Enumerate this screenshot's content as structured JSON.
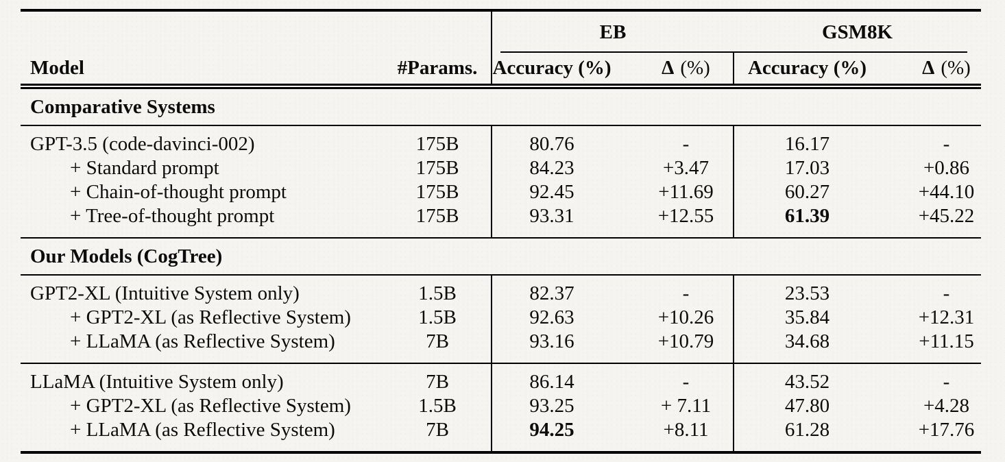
{
  "colors": {
    "text": "#0c0c0c",
    "background": "#f5f4f1"
  },
  "header": {
    "model": "Model",
    "params": "#Params.",
    "eb": "EB",
    "gsm8k": "GSM8K",
    "accuracy": "Accuracy (%)",
    "delta_symbol": "Δ",
    "delta_unit": "(%)"
  },
  "sections": [
    {
      "title": "Comparative Systems",
      "groups": [
        {
          "rows": [
            {
              "model": "GPT-3.5 (code-davinci-002)",
              "params": "175B",
              "eb_acc": "80.76",
              "eb_delta": "-",
              "gsm_acc": "16.17",
              "gsm_delta": "-"
            },
            {
              "model": "+ Standard prompt",
              "params": "175B",
              "eb_acc": "84.23",
              "eb_delta": "+3.47",
              "gsm_acc": "17.03",
              "gsm_delta": "+0.86"
            },
            {
              "model": "+ Chain-of-thought prompt",
              "params": "175B",
              "eb_acc": "92.45",
              "eb_delta": "+11.69",
              "gsm_acc": "60.27",
              "gsm_delta": "+44.10"
            },
            {
              "model": "+ Tree-of-thought prompt",
              "params": "175B",
              "eb_acc": "93.31",
              "eb_delta": "+12.55",
              "gsm_acc": "61.39",
              "gsm_delta": "+45.22"
            }
          ]
        }
      ]
    },
    {
      "title": "Our Models (CogTree)",
      "groups": [
        {
          "rows": [
            {
              "model": "GPT2-XL (Intuitive System only)",
              "params": "1.5B",
              "eb_acc": "82.37",
              "eb_delta": "-",
              "gsm_acc": "23.53",
              "gsm_delta": "-"
            },
            {
              "model": "+ GPT2-XL (as Reflective System)",
              "params": "1.5B",
              "eb_acc": "92.63",
              "eb_delta": "+10.26",
              "gsm_acc": "35.84",
              "gsm_delta": "+12.31"
            },
            {
              "model": "+ LLaMA (as Reflective System)",
              "params": "7B",
              "eb_acc": "93.16",
              "eb_delta": "+10.79",
              "gsm_acc": "34.68",
              "gsm_delta": "+11.15"
            }
          ]
        },
        {
          "rows": [
            {
              "model": "LLaMA (Intuitive System only)",
              "params": "7B",
              "eb_acc": "86.14",
              "eb_delta": "-",
              "gsm_acc": "43.52",
              "gsm_delta": "-"
            },
            {
              "model": "+ GPT2-XL (as Reflective System)",
              "params": "1.5B",
              "eb_acc": "93.25",
              "eb_delta": "+ 7.11",
              "gsm_acc": "47.80",
              "gsm_delta": "+4.28"
            },
            {
              "model": "+ LLaMA (as Reflective System)",
              "params": "7B",
              "eb_acc": "94.25",
              "eb_delta": "+8.11",
              "gsm_acc": "61.28",
              "gsm_delta": "+17.76"
            }
          ]
        }
      ]
    }
  ]
}
